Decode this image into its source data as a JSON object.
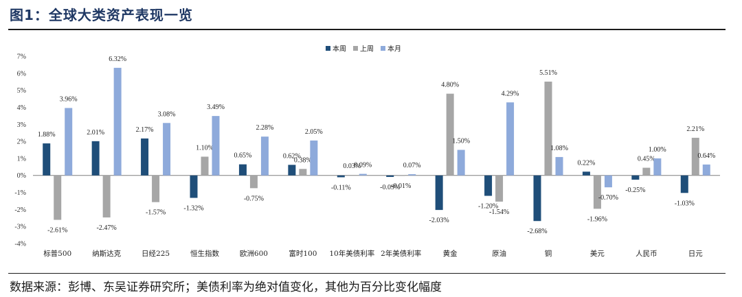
{
  "header": {
    "title": "图1：全球大类资产表现一览"
  },
  "footer": {
    "source": "数据来源：彭博、东吴证券研究所；美债利率为绝对值变化，其他为百分比变化幅度"
  },
  "chart_data": {
    "type": "bar",
    "categories": [
      "标普500",
      "纳斯达克",
      "日经225",
      "恒生指数",
      "欧洲600",
      "富时100",
      "10年美债利率",
      "2年美债利率",
      "黄金",
      "原油",
      "铜",
      "美元",
      "人民币",
      "日元"
    ],
    "series": [
      {
        "name": "本周",
        "color": "#1f4e79",
        "values": [
          1.88,
          2.01,
          2.17,
          -1.32,
          0.65,
          0.62,
          -0.11,
          -0.09,
          -2.03,
          -1.2,
          -2.68,
          0.22,
          -0.25,
          -1.03
        ],
        "labels": [
          "1.88%",
          "2.01%",
          "2.17%",
          "-1.32%",
          "0.65%",
          "0.62%",
          "-0.11%",
          "-0.09%",
          "-2.03%",
          "-1.20%",
          "-2.68%",
          "0.22%",
          "-0.25%",
          "-1.03%"
        ]
      },
      {
        "name": "上周",
        "color": "#a6a6a6",
        "values": [
          -2.61,
          -2.47,
          -1.57,
          1.1,
          -0.75,
          0.38,
          0.03,
          -0.01,
          4.8,
          -1.54,
          5.51,
          -1.96,
          0.45,
          2.21
        ],
        "labels": [
          "-2.61%",
          "-2.47%",
          "-1.57%",
          "1.10%",
          "-0.75%",
          "0.38%",
          "0.03%",
          "-0.01%",
          "4.80%",
          "-1.54%",
          "5.51%",
          "-1.96%",
          "0.45%",
          "2.21%"
        ]
      },
      {
        "name": "本月",
        "color": "#8eaadb",
        "values": [
          3.96,
          6.32,
          3.08,
          3.49,
          2.28,
          2.05,
          0.09,
          0.07,
          1.5,
          4.29,
          1.08,
          -0.7,
          1.0,
          0.64
        ],
        "labels": [
          "3.96%",
          "6.32%",
          "3.08%",
          "3.49%",
          "2.28%",
          "2.05%",
          "0.09%",
          "0.07%",
          "1.50%",
          "4.29%",
          "1.08%",
          "-0.70%",
          "1.00%",
          "0.64%"
        ]
      }
    ],
    "ylim": [
      -4,
      7
    ],
    "yticks": [
      7,
      6,
      5,
      4,
      3,
      2,
      1,
      0,
      -1,
      -2,
      -3,
      -4
    ],
    "ytick_labels": [
      "7%",
      "6%",
      "5%",
      "4%",
      "3%",
      "2%",
      "1%",
      "0%",
      "-1%",
      "-2%",
      "-3%",
      "-4%"
    ],
    "legend": {
      "position": "top-center"
    }
  }
}
